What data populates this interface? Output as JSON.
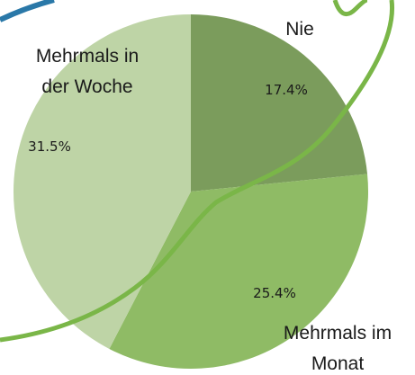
{
  "chart_data": {
    "type": "pie",
    "categories": [
      "Nie",
      "Mehrmals im Monat",
      "Mehrmals in der Woche"
    ],
    "values": [
      17.4,
      25.4,
      31.5
    ],
    "value_labels": [
      "17.4%",
      "25.4%",
      "31.5%"
    ],
    "colors": [
      "#7b9c5c",
      "#8fbb65",
      "#bed4a6"
    ]
  }
}
